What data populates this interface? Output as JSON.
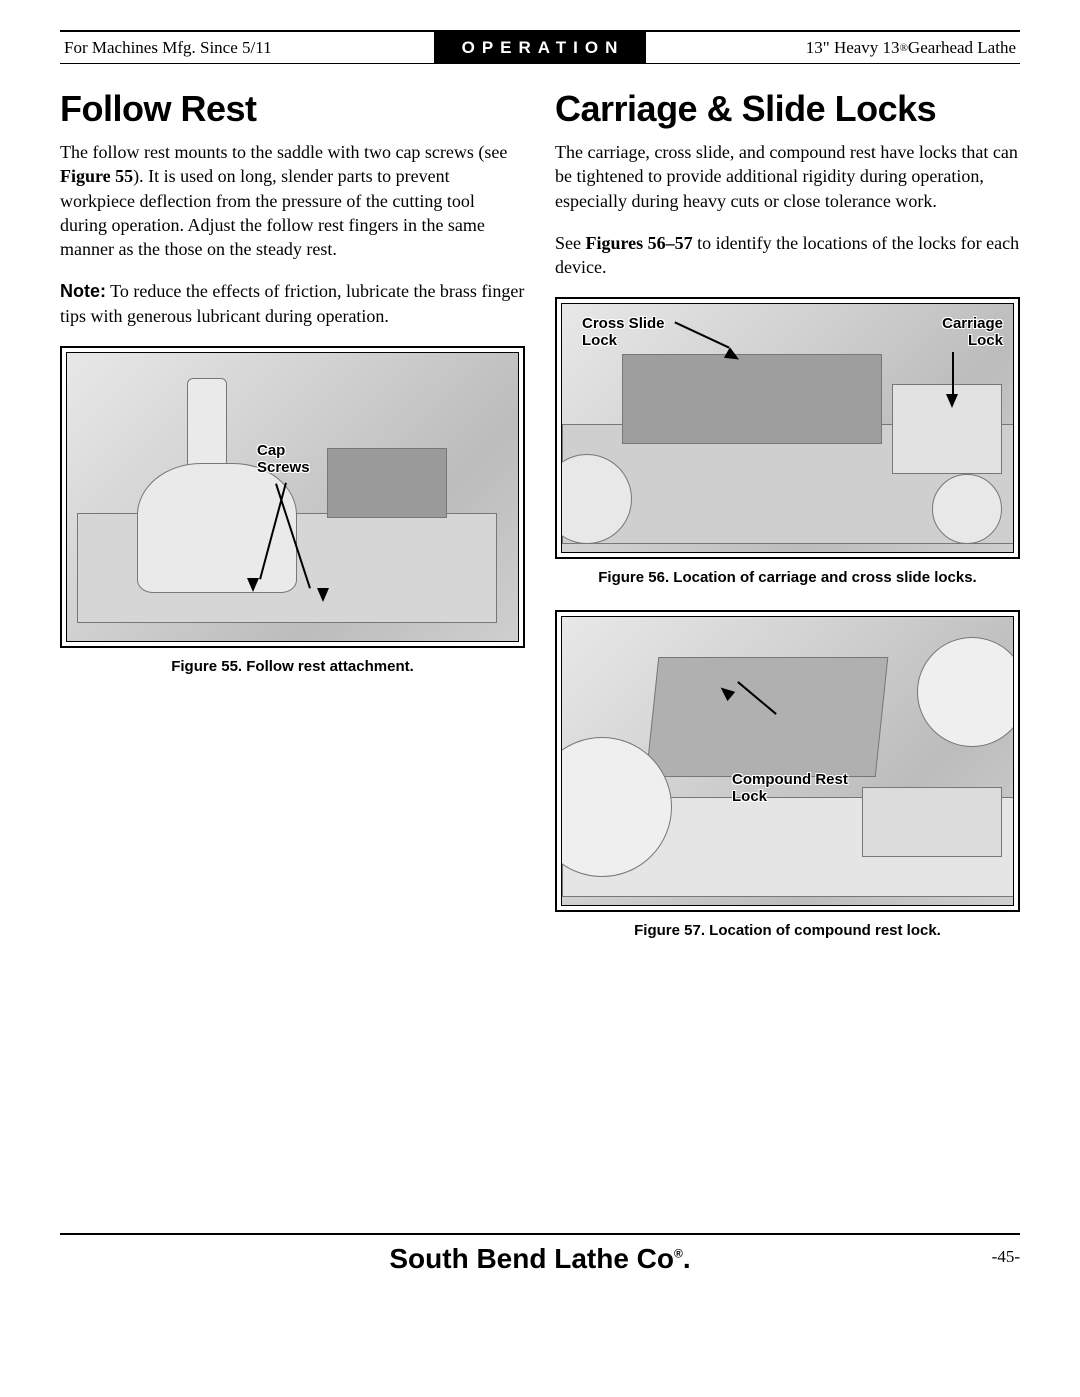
{
  "header": {
    "left": "For Machines Mfg. Since 5/11",
    "center": "OPERATION",
    "right_prefix": "13\" Heavy 13",
    "right_suffix": " Gearhead Lathe"
  },
  "left_col": {
    "heading": "Follow Rest",
    "para1_a": "The follow rest mounts to the saddle with two cap screws (see ",
    "para1_fig": "Figure 55",
    "para1_b": "). It is used on long, slender parts to prevent workpiece deflection from the pressure of the cutting tool during operation. Adjust the follow rest fingers in the same manner as the those on the steady rest.",
    "note_label": "Note:",
    "note_body": " To reduce the effects of friction, lubricate the brass finger tips with generous lubricant during operation.",
    "fig55": {
      "callout1_a": "Cap",
      "callout1_b": "Screws",
      "caption": "Figure 55. Follow rest attachment."
    }
  },
  "right_col": {
    "heading": "Carriage & Slide Locks",
    "para1": "The carriage, cross slide, and compound rest have locks that can be tightened to provide additional rigidity during operation, especially during heavy cuts or close tolerance work.",
    "para2_a": "See ",
    "para2_fig": "Figures 56–57",
    "para2_b": " to identify the locations of the locks for each device.",
    "fig56": {
      "callout_left_a": "Cross Slide",
      "callout_left_b": "Lock",
      "callout_right_a": "Carriage",
      "callout_right_b": "Lock",
      "caption": "Figure 56. Location of carriage and cross slide locks."
    },
    "fig57": {
      "callout_a": "Compound Rest",
      "callout_b": "Lock",
      "caption": "Figure 57. Location of compound rest lock."
    }
  },
  "footer": {
    "brand": "South Bend Lathe Co.",
    "page": "-45-"
  }
}
